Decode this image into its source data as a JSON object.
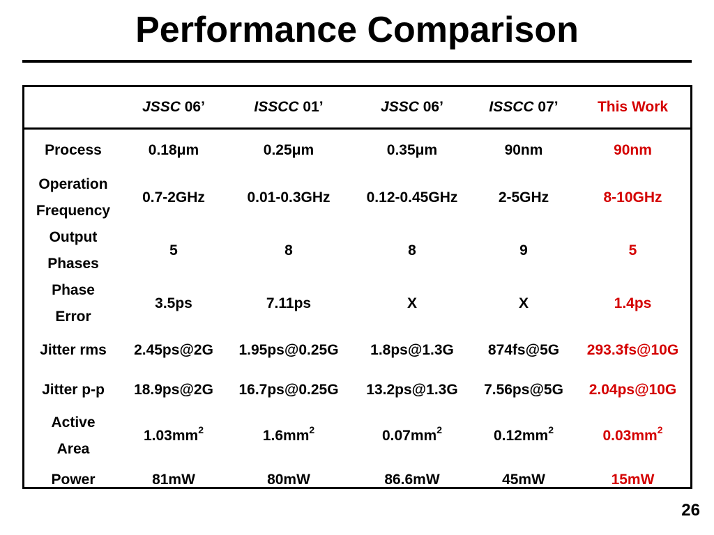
{
  "slide": {
    "title": "Performance Comparison",
    "page_number": "26"
  },
  "colors": {
    "highlight": "#d40000",
    "text": "#000000",
    "background": "#ffffff"
  },
  "table": {
    "columns": [
      {
        "venue": "JSSC",
        "year": " 06’",
        "highlight": false
      },
      {
        "venue": "ISSCC",
        "year": " 01’",
        "highlight": false
      },
      {
        "venue": "JSSC",
        "year": " 06’",
        "highlight": false
      },
      {
        "venue": "ISSCC",
        "year": " 07’",
        "highlight": false
      },
      {
        "venue": "",
        "year": "This Work",
        "highlight": true
      }
    ],
    "rows": [
      {
        "key": "process",
        "label_lines": [
          "Process"
        ],
        "cells": [
          {
            "text": "0.18μm"
          },
          {
            "text": "0.25μm"
          },
          {
            "text": "0.35μm"
          },
          {
            "text": "90nm"
          },
          {
            "text": "90nm"
          }
        ]
      },
      {
        "key": "operation_frequency",
        "label_lines": [
          "Operation",
          "Frequency"
        ],
        "cells": [
          {
            "text": "0.7-2GHz"
          },
          {
            "text": "0.01-0.3GHz"
          },
          {
            "text": "0.12-0.45GHz"
          },
          {
            "text": "2-5GHz"
          },
          {
            "text": "8-10GHz"
          }
        ]
      },
      {
        "key": "output_phases",
        "label_lines": [
          "Output",
          "Phases"
        ],
        "cells": [
          {
            "text": "5"
          },
          {
            "text": "8"
          },
          {
            "text": "8"
          },
          {
            "text": "9"
          },
          {
            "text": "5"
          }
        ]
      },
      {
        "key": "phase_error",
        "label_lines": [
          "Phase",
          "Error"
        ],
        "cells": [
          {
            "text": "3.5ps"
          },
          {
            "text": "7.11ps"
          },
          {
            "text": "X"
          },
          {
            "text": "X"
          },
          {
            "text": "1.4ps"
          }
        ]
      },
      {
        "key": "jitter_rms",
        "label_lines": [
          "Jitter rms"
        ],
        "cells": [
          {
            "text": "2.45ps@2G"
          },
          {
            "text": "1.95ps@0.25G"
          },
          {
            "text": "1.8ps@1.3G"
          },
          {
            "text": "874fs@5G"
          },
          {
            "text": "293.3fs@10G"
          }
        ]
      },
      {
        "key": "jitter_pp",
        "label_lines": [
          "Jitter p-p"
        ],
        "cells": [
          {
            "text": "18.9ps@2G"
          },
          {
            "text": "16.7ps@0.25G"
          },
          {
            "text": "13.2ps@1.3G"
          },
          {
            "text": "7.56ps@5G"
          },
          {
            "text": "2.04ps@10G"
          }
        ]
      },
      {
        "key": "active_area",
        "label_lines": [
          "Active",
          "Area"
        ],
        "cells": [
          {
            "text": "1.03mm",
            "sup": "2"
          },
          {
            "text": "1.6mm",
            "sup": "2"
          },
          {
            "text": "0.07mm",
            "sup": "2"
          },
          {
            "text": "0.12mm",
            "sup": "2"
          },
          {
            "text": "0.03mm",
            "sup": "2"
          }
        ]
      },
      {
        "key": "power",
        "label_lines": [
          "Power"
        ],
        "cells": [
          {
            "text": "81mW"
          },
          {
            "text": "80mW"
          },
          {
            "text": "86.6mW"
          },
          {
            "text": "45mW"
          },
          {
            "text": "15mW"
          }
        ]
      }
    ]
  }
}
